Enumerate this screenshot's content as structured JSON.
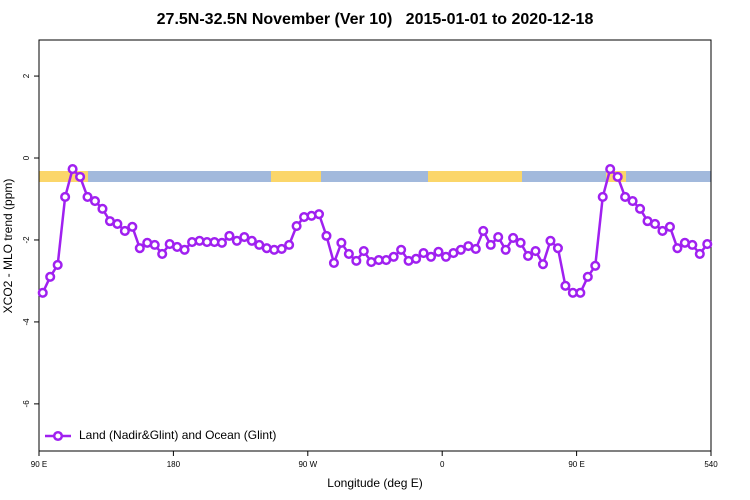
{
  "chart_data": {
    "type": "line",
    "title": "27.5N-32.5N November (Ver 10)   2015-01-01 to 2020-12-18",
    "x_label": "Longitude (deg E)",
    "y_label": "XCO2 - MLO trend (ppm)",
    "x": [
      92.5,
      97.5,
      102.5,
      107.5,
      112.5,
      117.5,
      122.5,
      127.5,
      132.5,
      137.5,
      142.5,
      147.5,
      152.5,
      157.5,
      162.5,
      167.5,
      172.5,
      177.5,
      182.5,
      187.5,
      192.5,
      197.5,
      202.5,
      207.5,
      212.5,
      217.5,
      222.5,
      227.5,
      232.5,
      237.5,
      242.5,
      247.5,
      252.5,
      257.5,
      262.5,
      267.5,
      272.5,
      277.5,
      282.5,
      287.5,
      292.5,
      297.5,
      302.5,
      307.5,
      312.5,
      317.5,
      322.5,
      327.5,
      332.5,
      337.5,
      342.5,
      347.5,
      352.5,
      357.5,
      362.5,
      367.5,
      372.5,
      377.5,
      382.5,
      387.5,
      392.5,
      397.5,
      402.5,
      407.5,
      412.5,
      417.5,
      422.5,
      427.5,
      432.5,
      437.5,
      442.5,
      447.5,
      452.5,
      457.5,
      462.5,
      467.5,
      472.5,
      477.5,
      482.5,
      487.5,
      492.5,
      497.5,
      502.5,
      507.5,
      512.5,
      517.5,
      522.5,
      527.5,
      532.5,
      537.5
    ],
    "series": [
      {
        "name": "Land (Nadir&Glint) and Ocean (Glint)",
        "color": "#a020f0",
        "values": [
          -3.29,
          -2.9,
          -2.61,
          -0.95,
          -0.27,
          -0.46,
          -0.95,
          -1.05,
          -1.24,
          -1.54,
          -1.61,
          -1.78,
          -1.68,
          -2.2,
          -2.07,
          -2.12,
          -2.34,
          -2.1,
          -2.17,
          -2.24,
          -2.05,
          -2.02,
          -2.05,
          -2.05,
          -2.07,
          -1.9,
          -2.02,
          -1.93,
          -2.02,
          -2.12,
          -2.2,
          -2.24,
          -2.22,
          -2.12,
          -1.66,
          -1.44,
          -1.41,
          -1.37,
          -1.9,
          -2.56,
          -2.07,
          -2.34,
          -2.51,
          -2.27,
          -2.54,
          -2.49,
          -2.49,
          -2.41,
          -2.24,
          -2.51,
          -2.46,
          -2.32,
          -2.41,
          -2.29,
          -2.41,
          -2.32,
          -2.24,
          -2.15,
          -2.22,
          -1.78,
          -2.12,
          -1.93,
          -2.24,
          -1.95,
          -2.07,
          -2.39,
          -2.27,
          -2.59,
          -2.02,
          -2.2,
          -3.12,
          -3.29,
          -3.29,
          -2.9,
          -2.63,
          -0.95,
          -0.27,
          -0.46,
          -0.95,
          -1.05,
          -1.24,
          -1.54,
          -1.61,
          -1.78,
          -1.68,
          -2.2,
          -2.07,
          -2.12,
          -2.34,
          -2.1
        ]
      }
    ],
    "xlim": [
      90,
      540
    ],
    "xticks": [
      {
        "value": 90,
        "label": "90 E"
      },
      180,
      {
        "value": 270,
        "label": "90 W"
      },
      {
        "value": 360,
        "label": "0"
      },
      {
        "value": 450,
        "label": "90 E"
      },
      540
    ],
    "ylim": [
      -7.15,
      2.88
    ],
    "yticks": [
      2,
      0,
      -2,
      -4,
      -6
    ],
    "legend": "bottom-left"
  }
}
